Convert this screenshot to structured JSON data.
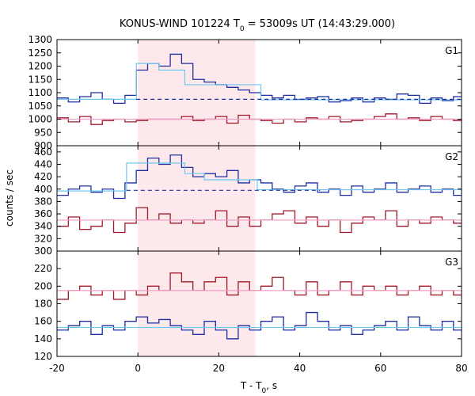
{
  "chart_data": {
    "type": "line",
    "title_main": "KONUS-WIND 101224 T",
    "title_sub": "0",
    "title_rest": " = 53009s UT (14:43:29.000)",
    "xlabel_main": "T - T",
    "xlabel_sub": "0",
    "xlabel_rest": ", s",
    "ylabel": "counts / sec",
    "xlim": [
      -20,
      80
    ],
    "x_ticks": [
      "-20",
      "0",
      "20",
      "40",
      "60",
      "80"
    ],
    "x_tick_values": [
      -20,
      0,
      20,
      40,
      60,
      80
    ],
    "highlight_interval": [
      0,
      29
    ],
    "highlight_color": "#fde8ec",
    "bin_edges": [
      -20,
      -17.2,
      -14.4,
      -11.6,
      -8.8,
      -6,
      -3.2,
      -0.4,
      2.4,
      5.2,
      8,
      10.8,
      13.6,
      16.4,
      19.2,
      22,
      24.8,
      27.6,
      30.4,
      33.2,
      36,
      38.8,
      41.6,
      44.4,
      47.2,
      50,
      52.8,
      55.6,
      58.4,
      61.2,
      64,
      66.8,
      69.6,
      72.4,
      75.2,
      78,
      80
    ],
    "panels": [
      {
        "label": "G1",
        "ylim": [
          900,
          1300
        ],
        "y_ticks": [
          "900",
          "950",
          "1000",
          "1050",
          "1100",
          "1150",
          "1200",
          "1250",
          "1300"
        ],
        "y_tick_values": [
          900,
          950,
          1000,
          1050,
          1100,
          1150,
          1200,
          1250,
          1300
        ],
        "series": [
          {
            "color": "#1f2fa0",
            "values": [
              1080,
              1065,
              1085,
              1100,
              1075,
              1060,
              1090,
              1185,
              1210,
              1200,
              1245,
              1210,
              1150,
              1140,
              1130,
              1120,
              1110,
              1100,
              1090,
              1080,
              1090,
              1075,
              1080,
              1085,
              1065,
              1070,
              1080,
              1065,
              1080,
              1075,
              1095,
              1090,
              1060,
              1080,
              1070,
              1085
            ]
          },
          {
            "color": "#a01a2a",
            "values": [
              1005,
              990,
              1010,
              980,
              995,
              1000,
              990,
              995,
              1000,
              1000,
              1000,
              1010,
              995,
              1000,
              1010,
              985,
              1015,
              1000,
              995,
              985,
              1000,
              990,
              1005,
              1000,
              1010,
              990,
              995,
              1000,
              1010,
              1020,
              1000,
              1005,
              995,
              1010,
              1000,
              995
            ]
          }
        ],
        "fits": [
          {
            "color": "#6ec8f0",
            "style": "solid",
            "segments": [
              [
                -20,
                -0.4,
                1075
              ],
              [
                -0.4,
                5.2,
                1210
              ],
              [
                5.2,
                11.6,
                1185
              ],
              [
                11.6,
                30.4,
                1130
              ],
              [
                30.4,
                80,
                1073
              ]
            ]
          },
          {
            "color": "#1f2fa0",
            "style": "dashed",
            "segments": [
              [
                -0.4,
                80,
                1075
              ]
            ]
          },
          {
            "color": "#f0a0c8",
            "style": "solid",
            "segments": [
              [
                -20,
                80,
                1000
              ]
            ]
          }
        ]
      },
      {
        "label": "G2",
        "ylim": [
          300,
          470
        ],
        "y_ticks": [
          "300",
          "320",
          "340",
          "360",
          "380",
          "400",
          "420",
          "440",
          "460"
        ],
        "y_tick_values": [
          300,
          320,
          340,
          360,
          380,
          400,
          420,
          440,
          460
        ],
        "series": [
          {
            "color": "#1f2fa0",
            "values": [
              390,
              400,
              405,
              395,
              400,
              385,
              410,
              430,
              450,
              440,
              455,
              435,
              420,
              425,
              420,
              430,
              410,
              415,
              410,
              400,
              395,
              405,
              410,
              395,
              400,
              390,
              405,
              395,
              400,
              410,
              395,
              400,
              405,
              395,
              400,
              390
            ]
          },
          {
            "color": "#a01a2a",
            "values": [
              340,
              355,
              335,
              340,
              350,
              330,
              345,
              370,
              350,
              360,
              345,
              350,
              345,
              350,
              365,
              340,
              355,
              340,
              350,
              360,
              365,
              345,
              355,
              340,
              350,
              330,
              345,
              355,
              350,
              365,
              340,
              350,
              345,
              355,
              350,
              345
            ]
          }
        ],
        "fits": [
          {
            "color": "#6ec8f0",
            "style": "solid",
            "segments": [
              [
                -20,
                -2.8,
                397
              ],
              [
                -2.8,
                11.6,
                442
              ],
              [
                11.6,
                16.4,
                425
              ],
              [
                16.4,
                29.5,
                415
              ],
              [
                29.5,
                80,
                399
              ]
            ]
          },
          {
            "color": "#1f2fa0",
            "style": "dashed",
            "segments": [
              [
                -2.8,
                45,
                398
              ]
            ]
          },
          {
            "color": "#f0a0c8",
            "style": "solid",
            "segments": [
              [
                -20,
                80,
                350
              ]
            ]
          }
        ]
      },
      {
        "label": "G3",
        "ylim": [
          120,
          240
        ],
        "y_ticks": [
          "120",
          "140",
          "160",
          "180",
          "200",
          "220"
        ],
        "y_tick_values": [
          120,
          140,
          160,
          180,
          200,
          220
        ],
        "series": [
          {
            "color": "#a01a2a",
            "values": [
              185,
              195,
              200,
              190,
              195,
              185,
              195,
              190,
              200,
              195,
              215,
              205,
              195,
              205,
              210,
              190,
              205,
              195,
              200,
              210,
              195,
              190,
              205,
              190,
              195,
              205,
              190,
              200,
              195,
              200,
              190,
              195,
              200,
              190,
              195,
              190
            ]
          },
          {
            "color": "#1f2fa0",
            "values": [
              150,
              155,
              160,
              145,
              155,
              150,
              160,
              165,
              158,
              162,
              155,
              150,
              145,
              160,
              150,
              140,
              155,
              150,
              160,
              165,
              150,
              155,
              170,
              160,
              150,
              155,
              145,
              150,
              155,
              160,
              150,
              165,
              155,
              150,
              160,
              150
            ]
          }
        ],
        "fits": [
          {
            "color": "#f0a0c8",
            "style": "solid",
            "segments": [
              [
                -20,
                80,
                195
              ]
            ]
          },
          {
            "color": "#6ec8f0",
            "style": "solid",
            "segments": [
              [
                -20,
                80,
                153
              ]
            ]
          }
        ]
      }
    ]
  }
}
